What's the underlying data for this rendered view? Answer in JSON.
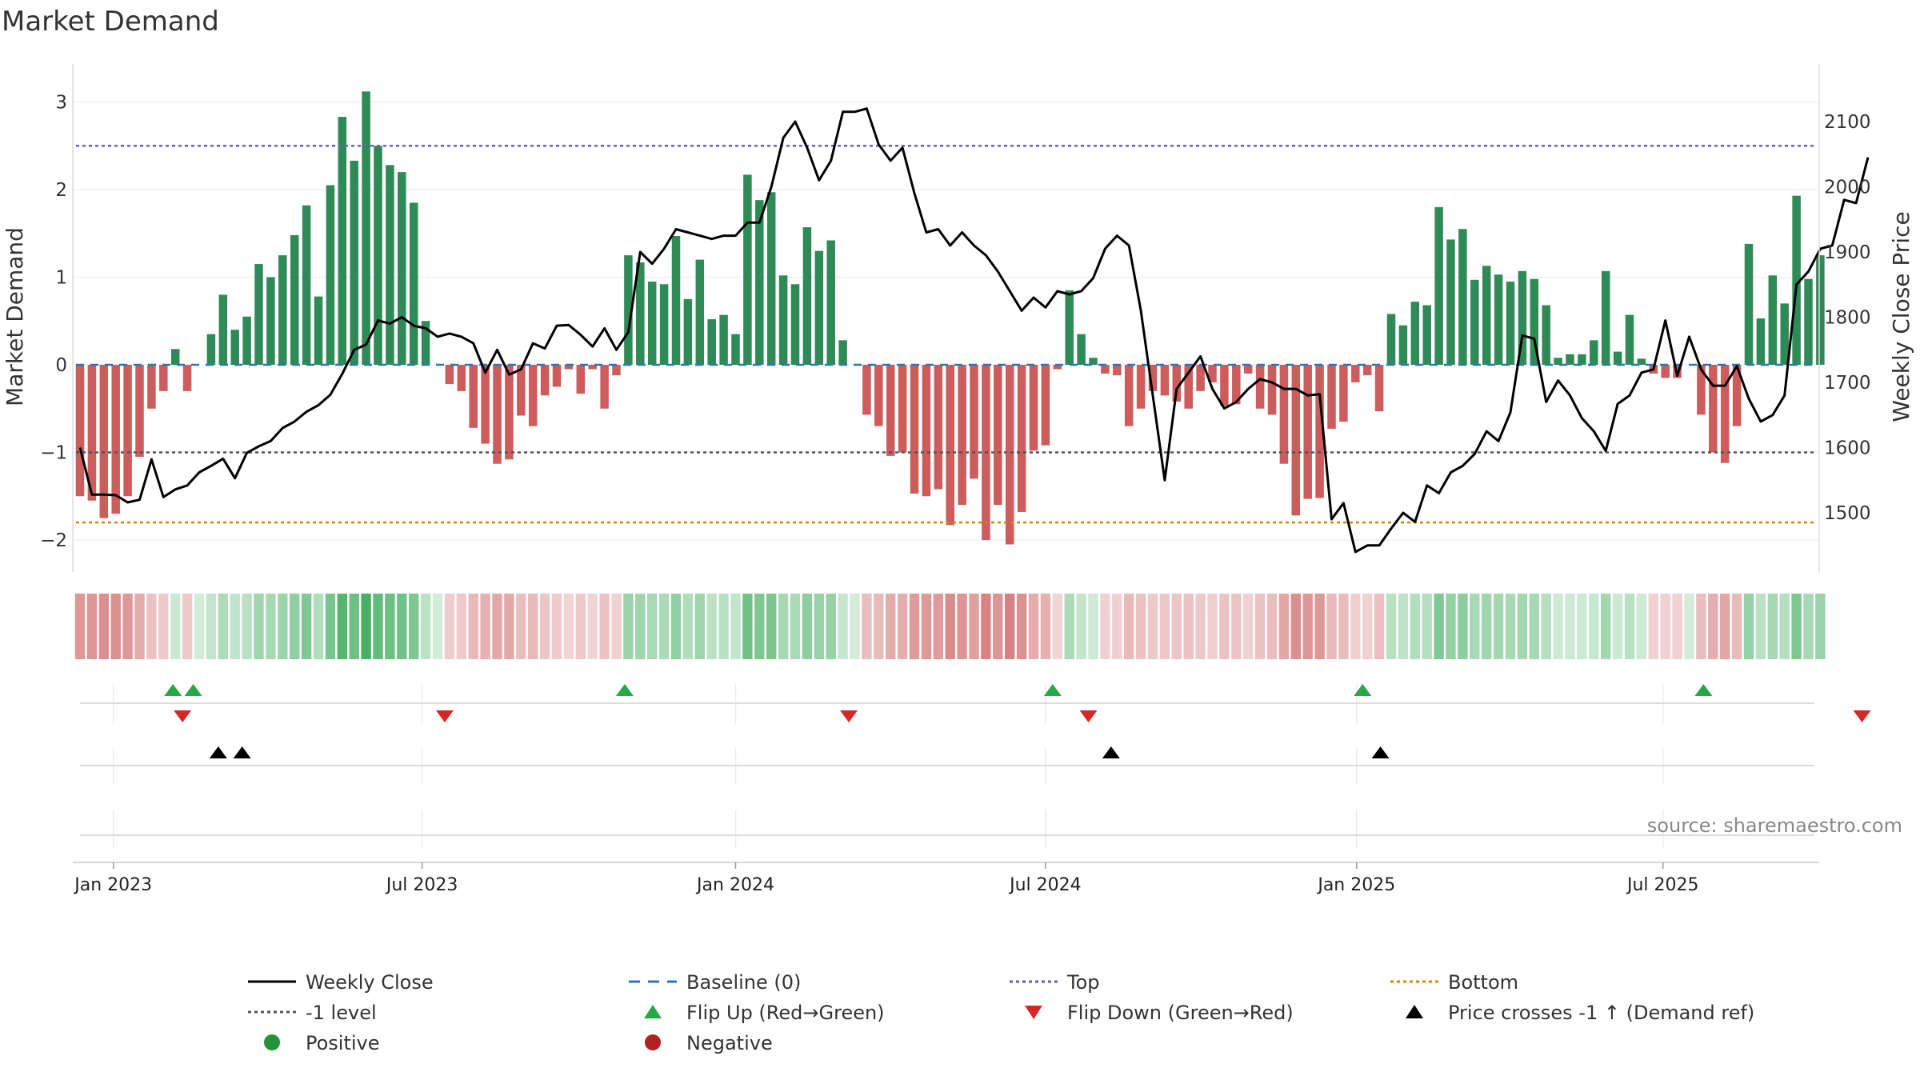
{
  "chart_data": {
    "type": "bar",
    "title": "Market Demand",
    "ylabel_left": "Market Demand",
    "ylabel_right": "Weekly Close Price",
    "ylim_left": [
      -2.35,
      3.35
    ],
    "ylim_right": [
      1420,
      2160
    ],
    "left_ticks": [
      3,
      2,
      1,
      0,
      -1,
      -2
    ],
    "right_ticks": [
      2100,
      2000,
      1900,
      1800,
      1700,
      1600,
      1500
    ],
    "x_ticks": [
      "Jan 2023",
      "Jul 2023",
      "Jan 2024",
      "Jul 2024",
      "Jan 2025",
      "Jul 2025"
    ],
    "x_tick_weeks": [
      2.8,
      28.7,
      55,
      81,
      107.1,
      132.8
    ],
    "reference_lines": {
      "top": 2.5,
      "minus_one": -1,
      "bottom": -1.8,
      "baseline": 0
    },
    "demand": [
      -1.5,
      -1.55,
      -1.75,
      -1.7,
      -1.5,
      -1.05,
      -0.5,
      -0.3,
      0.18,
      -0.3,
      0,
      0.35,
      0.8,
      0.4,
      0.55,
      1.15,
      1.0,
      1.25,
      1.48,
      1.82,
      0.78,
      2.05,
      2.83,
      2.33,
      3.12,
      2.5,
      2.28,
      2.2,
      1.85,
      0.5,
      0,
      -0.22,
      -0.3,
      -0.72,
      -0.9,
      -1.13,
      -1.08,
      -0.58,
      -0.7,
      -0.35,
      -0.25,
      -0.05,
      -0.33,
      -0.05,
      -0.5,
      -0.12,
      1.25,
      1.17,
      0.95,
      0.92,
      1.47,
      0.75,
      1.2,
      0.52,
      0.57,
      0.35,
      2.17,
      1.88,
      1.97,
      1.02,
      0.92,
      1.57,
      1.3,
      1.42,
      0.28,
      0,
      -0.57,
      -0.7,
      -1.04,
      -1.0,
      -1.47,
      -1.5,
      -1.42,
      -1.83,
      -1.6,
      -1.3,
      -2.0,
      -1.6,
      -2.05,
      -1.68,
      -0.98,
      -0.92,
      -0.05,
      0.85,
      0.35,
      0.08,
      -0.1,
      -0.12,
      -0.7,
      -0.5,
      -0.3,
      -0.35,
      -0.42,
      -0.5,
      -0.3,
      -0.2,
      -0.47,
      -0.45,
      -0.1,
      -0.5,
      -0.57,
      -1.13,
      -1.72,
      -1.53,
      -1.52,
      -0.73,
      -0.65,
      -0.2,
      -0.12,
      -0.53,
      0.58,
      0.45,
      0.72,
      0.68,
      1.8,
      1.43,
      1.55,
      0.97,
      1.13,
      1.03,
      0.95,
      1.07,
      0.98,
      0.68,
      0.08,
      0.12,
      0.12,
      0.28,
      1.07,
      0.15,
      0.57,
      0.07,
      -0.1,
      -0.15,
      -0.15,
      0,
      -0.57,
      -1.0,
      -1.12,
      -0.7,
      1.38,
      0.53,
      1.02,
      0.7,
      1.93,
      0.98,
      1.25
    ],
    "price": [
      1600,
      1528,
      1528,
      1527,
      1516,
      1520,
      1582,
      1524,
      1536,
      1542,
      1562,
      1572,
      1583,
      1553,
      1592,
      1602,
      1610,
      1630,
      1640,
      1655,
      1665,
      1681,
      1713,
      1750,
      1758,
      1795,
      1790,
      1800,
      1787,
      1783,
      1770,
      1775,
      1770,
      1760,
      1715,
      1750,
      1712,
      1720,
      1760,
      1752,
      1787,
      1788,
      1773,
      1755,
      1783,
      1750,
      1777,
      1900,
      1882,
      1905,
      1935,
      1930,
      1925,
      1920,
      1925,
      1925,
      1945,
      1945,
      2000,
      2075,
      2100,
      2060,
      2010,
      2040,
      2115,
      2115,
      2120,
      2065,
      2040,
      2060,
      1990,
      1930,
      1935,
      1910,
      1930,
      1910,
      1895,
      1870,
      1840,
      1810,
      1830,
      1815,
      1840,
      1835,
      1840,
      1860,
      1905,
      1925,
      1910,
      1810,
      1680,
      1550,
      1690,
      1715,
      1740,
      1690,
      1660,
      1670,
      1690,
      1705,
      1700,
      1690,
      1690,
      1680,
      1682,
      1490,
      1515,
      1440,
      1450,
      1450,
      1476,
      1500,
      1486,
      1542,
      1530,
      1562,
      1572,
      1590,
      1625,
      1610,
      1654,
      1772,
      1767,
      1670,
      1703,
      1680,
      1645,
      1625,
      1595,
      1667,
      1680,
      1715,
      1720,
      1795,
      1710,
      1770,
      1720,
      1695,
      1695,
      1725,
      1675,
      1640,
      1650,
      1680,
      1850,
      1870,
      1905,
      1910,
      1980,
      1975,
      2045
    ],
    "flip_up_weeks": [
      7.8,
      9.5,
      45.7,
      81.6,
      107.6,
      136.2
    ],
    "flip_down_weeks": [
      8.6,
      30.6,
      64.5,
      84.6,
      149.5
    ],
    "price_cross_weeks": [
      11.6,
      13.6,
      86.5,
      109.1
    ],
    "legend": [
      {
        "label": "Weekly Close",
        "icon": "black-line",
        "color": "#000000"
      },
      {
        "label": "Baseline (0)",
        "icon": "blue-dash",
        "color": "#2e75b6"
      },
      {
        "label": "Top",
        "icon": "purple-dots",
        "color": "#6b5fb5"
      },
      {
        "label": "Bottom",
        "icon": "orange-dots",
        "color": "#d4860b"
      },
      {
        "label": "-1 level",
        "icon": "gray-dots",
        "color": "#555555"
      },
      {
        "label": "Flip Up (Red→Green)",
        "icon": "green-triangle-up",
        "color": "#27a745"
      },
      {
        "label": "Flip Down (Green→Red)",
        "icon": "red-triangle-down",
        "color": "#d62728"
      },
      {
        "label": "Price crosses -1 ↑ (Demand ref)",
        "icon": "black-triangle-up",
        "color": "#000000"
      },
      {
        "label": "Positive",
        "icon": "green-dot",
        "color": "#23943c"
      },
      {
        "label": "Negative",
        "icon": "red-dot",
        "color": "#b22222"
      }
    ],
    "source": "source: sharemaestro.com",
    "colors": {
      "positive": "#2e8b57",
      "negative": "#cd5c5c",
      "price": "#000000",
      "top": "#6b5fb5",
      "bottom": "#d4860b",
      "minus_one": "#555555",
      "baseline": "#2e75b6"
    }
  }
}
